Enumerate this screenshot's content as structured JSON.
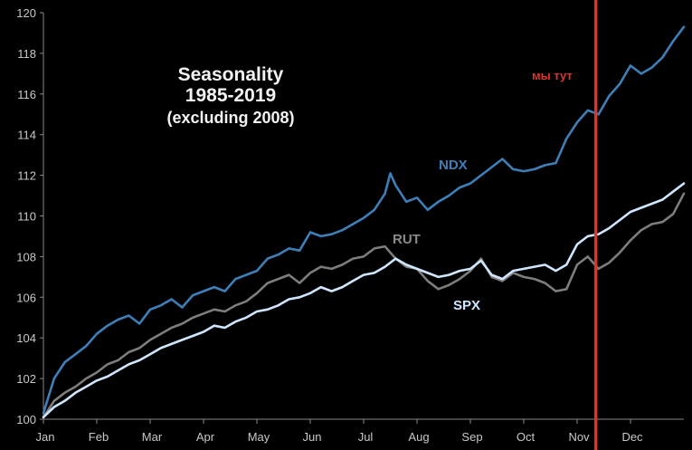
{
  "chart_data": {
    "type": "line",
    "title_lines": [
      "Seasonality",
      "1985-2019",
      "(excluding 2008)"
    ],
    "x_months": [
      "Jan",
      "Feb",
      "Mar",
      "Apr",
      "May",
      "Jun",
      "Jul",
      "Aug",
      "Sep",
      "Oct",
      "Nov",
      "Dec"
    ],
    "y_ticks": [
      "100",
      "102",
      "104",
      "106",
      "108",
      "110",
      "112",
      "114",
      "116",
      "118",
      "120"
    ],
    "xlim": [
      0,
      12
    ],
    "ylim": [
      100,
      120
    ],
    "grid": false,
    "series": [
      {
        "name": "NDX",
        "color": "#3f7fb8",
        "x": [
          0,
          0.2,
          0.4,
          0.6,
          0.8,
          1.0,
          1.2,
          1.4,
          1.6,
          1.8,
          2.0,
          2.2,
          2.4,
          2.6,
          2.8,
          3.0,
          3.2,
          3.4,
          3.6,
          3.8,
          4.0,
          4.2,
          4.4,
          4.6,
          4.8,
          5.0,
          5.2,
          5.4,
          5.6,
          5.8,
          6.0,
          6.2,
          6.4,
          6.5,
          6.6,
          6.8,
          7.0,
          7.2,
          7.4,
          7.6,
          7.8,
          8.0,
          8.2,
          8.4,
          8.6,
          8.8,
          9.0,
          9.2,
          9.4,
          9.6,
          9.8,
          10.0,
          10.2,
          10.4,
          10.6,
          10.8,
          11.0,
          11.2,
          11.4,
          11.6,
          11.8,
          12.0
        ],
        "values": [
          100.3,
          102.0,
          102.8,
          103.2,
          103.6,
          104.2,
          104.6,
          104.9,
          105.1,
          104.7,
          105.4,
          105.6,
          105.9,
          105.5,
          106.1,
          106.3,
          106.5,
          106.3,
          106.9,
          107.1,
          107.3,
          107.9,
          108.1,
          108.4,
          108.3,
          109.2,
          109.0,
          109.1,
          109.3,
          109.6,
          109.9,
          110.3,
          111.1,
          112.1,
          111.5,
          110.7,
          110.9,
          110.3,
          110.7,
          111.0,
          111.4,
          111.6,
          112.0,
          112.4,
          112.8,
          112.3,
          112.2,
          112.3,
          112.5,
          112.6,
          113.8,
          114.6,
          115.2,
          115.0,
          115.9,
          116.5,
          117.4,
          117.0,
          117.3,
          117.8,
          118.6,
          119.3
        ]
      },
      {
        "name": "RUT",
        "color": "#7d7d7d",
        "x": [
          0,
          0.2,
          0.4,
          0.6,
          0.8,
          1.0,
          1.2,
          1.4,
          1.6,
          1.8,
          2.0,
          2.2,
          2.4,
          2.6,
          2.8,
          3.0,
          3.2,
          3.4,
          3.6,
          3.8,
          4.0,
          4.2,
          4.4,
          4.6,
          4.8,
          5.0,
          5.2,
          5.4,
          5.6,
          5.8,
          6.0,
          6.2,
          6.4,
          6.6,
          6.8,
          7.0,
          7.2,
          7.4,
          7.6,
          7.8,
          8.0,
          8.2,
          8.4,
          8.6,
          8.8,
          9.0,
          9.2,
          9.4,
          9.6,
          9.8,
          10.0,
          10.2,
          10.4,
          10.6,
          10.8,
          11.0,
          11.2,
          11.4,
          11.6,
          11.8,
          12.0
        ],
        "values": [
          100.1,
          100.9,
          101.3,
          101.6,
          102.0,
          102.3,
          102.7,
          102.9,
          103.3,
          103.5,
          103.9,
          104.2,
          104.5,
          104.7,
          105.0,
          105.2,
          105.4,
          105.3,
          105.6,
          105.8,
          106.2,
          106.7,
          106.9,
          107.1,
          106.7,
          107.2,
          107.5,
          107.4,
          107.6,
          107.9,
          108.0,
          108.4,
          108.5,
          107.9,
          107.5,
          107.4,
          106.8,
          106.4,
          106.6,
          106.9,
          107.3,
          107.9,
          107.0,
          106.8,
          107.2,
          107.0,
          106.9,
          106.7,
          106.3,
          106.4,
          107.6,
          108.0,
          107.4,
          107.7,
          108.2,
          108.8,
          109.3,
          109.6,
          109.7,
          110.1,
          111.1
        ]
      },
      {
        "name": "SPX",
        "color": "#cfe6ff",
        "x": [
          0,
          0.2,
          0.4,
          0.6,
          0.8,
          1.0,
          1.2,
          1.4,
          1.6,
          1.8,
          2.0,
          2.2,
          2.4,
          2.6,
          2.8,
          3.0,
          3.2,
          3.4,
          3.6,
          3.8,
          4.0,
          4.2,
          4.4,
          4.6,
          4.8,
          5.0,
          5.2,
          5.4,
          5.6,
          5.8,
          6.0,
          6.2,
          6.4,
          6.6,
          6.8,
          7.0,
          7.2,
          7.4,
          7.6,
          7.8,
          8.0,
          8.2,
          8.4,
          8.6,
          8.8,
          9.0,
          9.2,
          9.4,
          9.6,
          9.8,
          10.0,
          10.2,
          10.4,
          10.6,
          10.8,
          11.0,
          11.2,
          11.4,
          11.6,
          11.8,
          12.0
        ],
        "values": [
          100.1,
          100.6,
          100.9,
          101.3,
          101.6,
          101.9,
          102.1,
          102.4,
          102.7,
          102.9,
          103.2,
          103.5,
          103.7,
          103.9,
          104.1,
          104.3,
          104.6,
          104.5,
          104.8,
          105.0,
          105.3,
          105.4,
          105.6,
          105.9,
          106.0,
          106.2,
          106.5,
          106.3,
          106.5,
          106.8,
          107.1,
          107.2,
          107.5,
          107.9,
          107.6,
          107.4,
          107.2,
          107.0,
          107.1,
          107.3,
          107.4,
          107.8,
          107.1,
          106.9,
          107.3,
          107.4,
          107.5,
          107.6,
          107.3,
          107.6,
          108.6,
          109.0,
          109.1,
          109.4,
          109.8,
          110.2,
          110.4,
          110.6,
          110.8,
          111.2,
          111.6
        ]
      }
    ],
    "marker": {
      "x": 10.35,
      "label": "мы тут",
      "color": "#e0332b"
    }
  }
}
